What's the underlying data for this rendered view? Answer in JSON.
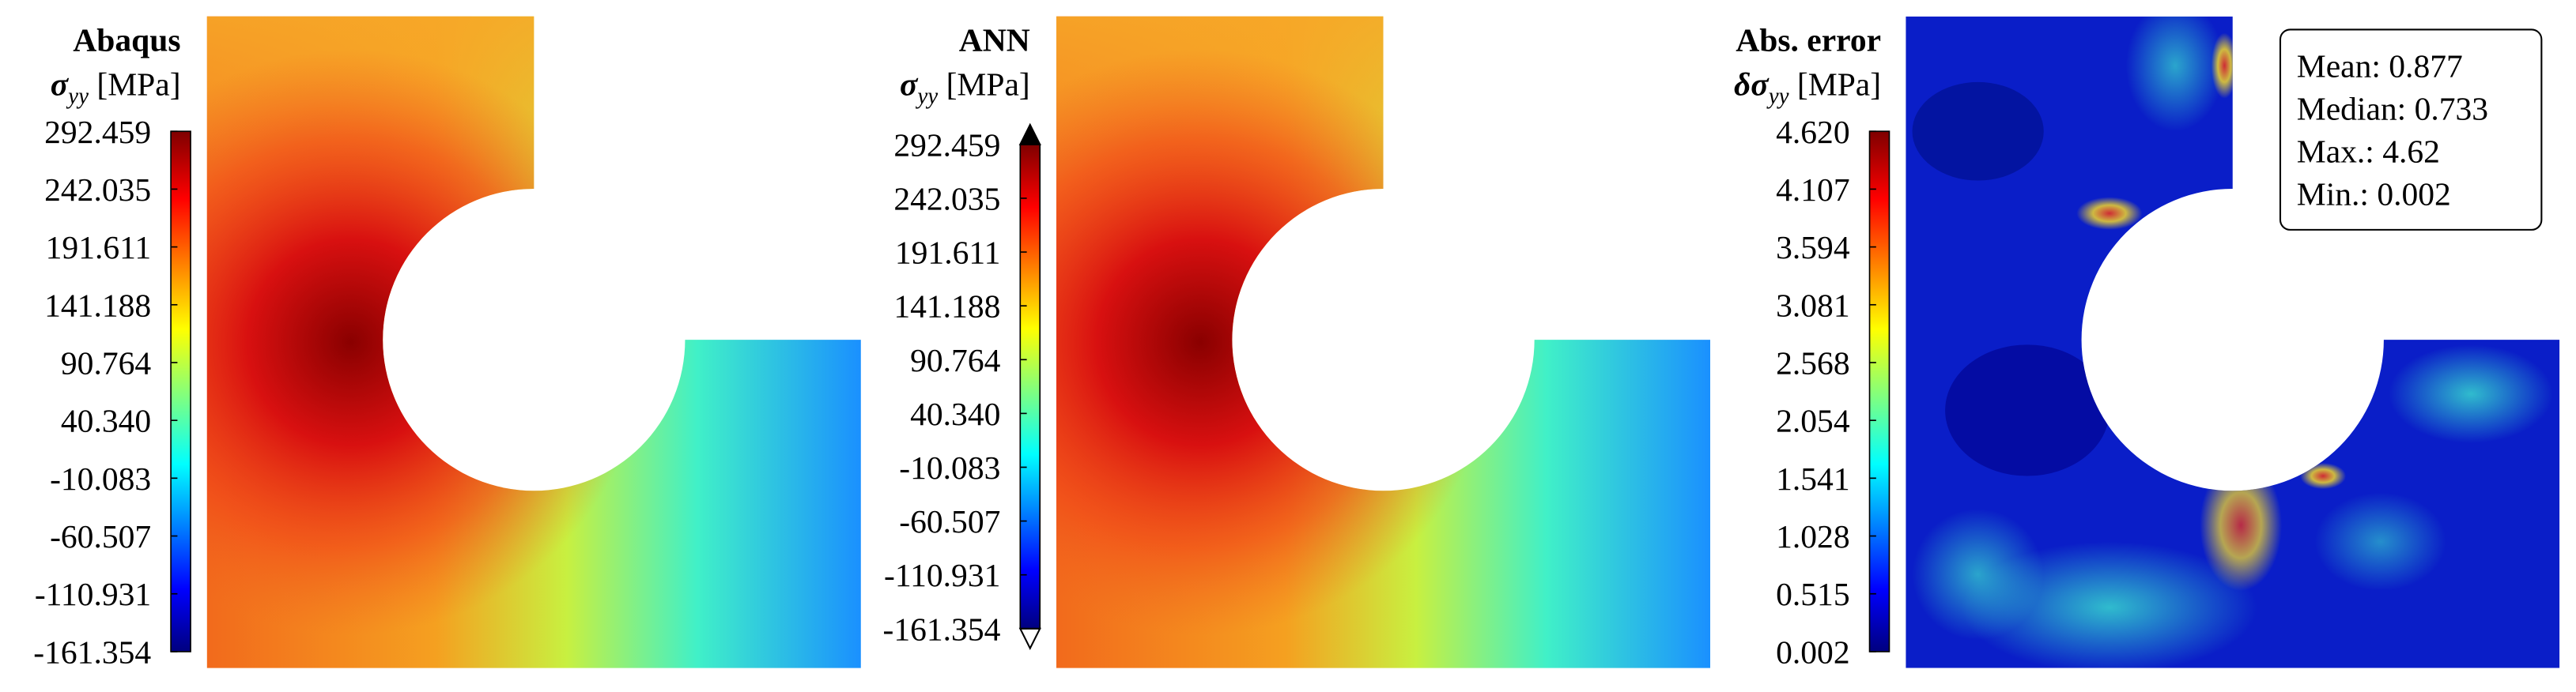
{
  "panels": [
    {
      "title": "Abaqus",
      "symbol": "σ",
      "subscript": "yy",
      "unit": "[MPa]",
      "colorbar_ticks": [
        "292.459",
        "242.035",
        "191.611",
        "141.188",
        "90.764",
        "40.340",
        "-10.083",
        "-60.507",
        "-110.931",
        "-161.354"
      ]
    },
    {
      "title": "ANN",
      "symbol": "σ",
      "subscript": "yy",
      "unit": "[MPa]",
      "colorbar_ticks": [
        "292.459",
        "242.035",
        "191.611",
        "141.188",
        "90.764",
        "40.340",
        "-10.083",
        "-60.507",
        "-110.931",
        "-161.354"
      ]
    },
    {
      "title": "Abs. error",
      "symbol": "δσ",
      "subscript": "yy",
      "unit": "[MPa]",
      "colorbar_ticks": [
        "4.620",
        "4.107",
        "3.594",
        "3.081",
        "2.568",
        "2.054",
        "1.541",
        "1.028",
        "0.515",
        "0.002"
      ]
    }
  ],
  "stats": [
    "Mean: 0.877",
    "Median: 0.733",
    "Max.: 4.62",
    "Min.: 0.002"
  ]
}
